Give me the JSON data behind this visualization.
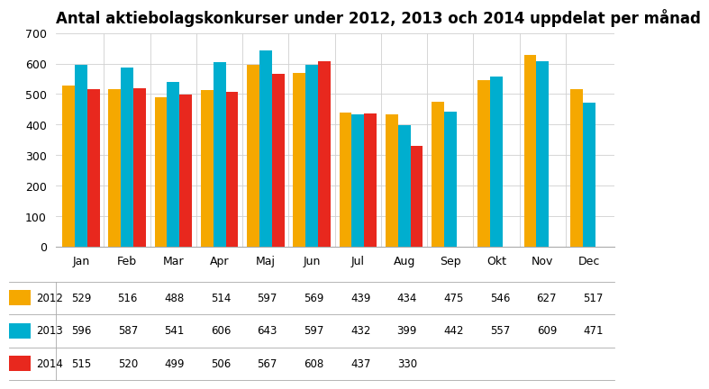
{
  "title": "Antal aktiebolagskonkurser under 2012, 2013 och 2014 uppdelat per månad",
  "months": [
    "Jan",
    "Feb",
    "Mar",
    "Apr",
    "Maj",
    "Jun",
    "Jul",
    "Aug",
    "Sep",
    "Okt",
    "Nov",
    "Dec"
  ],
  "series": {
    "2012": [
      529,
      516,
      488,
      514,
      597,
      569,
      439,
      434,
      475,
      546,
      627,
      517
    ],
    "2013": [
      596,
      587,
      541,
      606,
      643,
      597,
      432,
      399,
      442,
      557,
      609,
      471
    ],
    "2014": [
      515,
      520,
      499,
      506,
      567,
      608,
      437,
      330,
      null,
      null,
      null,
      null
    ]
  },
  "colors": {
    "2012": "#F5A800",
    "2013": "#00AECF",
    "2014": "#E8281E"
  },
  "ylim": [
    0,
    700
  ],
  "yticks": [
    0,
    100,
    200,
    300,
    400,
    500,
    600,
    700
  ],
  "background_color": "#ffffff",
  "title_fontsize": 12,
  "bar_width": 0.27,
  "series_keys": [
    "2012",
    "2013",
    "2014"
  ]
}
